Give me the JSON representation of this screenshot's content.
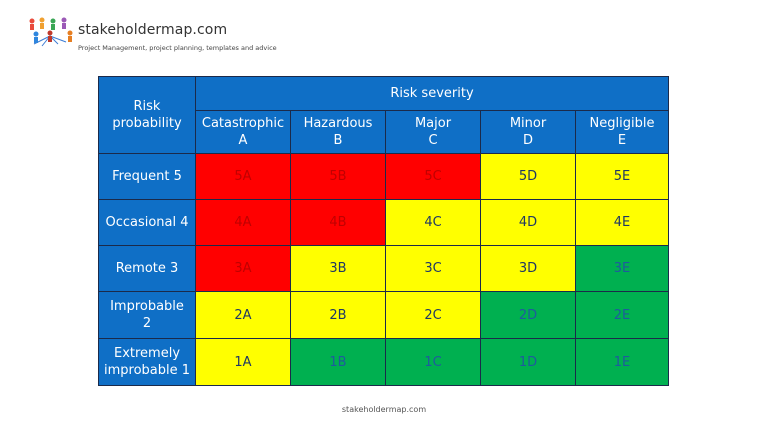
{
  "header": {
    "brand": "stakeholdermap.com",
    "tagline": "Project Management, project planning, templates and advice"
  },
  "table": {
    "corner_label_1": "Risk",
    "corner_label_2": "probability",
    "severity_label": "Risk severity",
    "columns": [
      {
        "name": "Catastrophic",
        "code": "A"
      },
      {
        "name": "Hazardous",
        "code": "B"
      },
      {
        "name": "Major",
        "code": "C"
      },
      {
        "name": "Minor",
        "code": "D"
      },
      {
        "name": "Negligible",
        "code": "E"
      }
    ],
    "rows": [
      {
        "label_1": "Frequent 5",
        "label_2": "",
        "cells": [
          {
            "text": "5A",
            "level": "high"
          },
          {
            "text": "5B",
            "level": "high"
          },
          {
            "text": "5C",
            "level": "high"
          },
          {
            "text": "5D",
            "level": "medium"
          },
          {
            "text": "5E",
            "level": "medium"
          }
        ]
      },
      {
        "label_1": "Occasional 4",
        "label_2": "",
        "cells": [
          {
            "text": "4A",
            "level": "high"
          },
          {
            "text": "4B",
            "level": "high"
          },
          {
            "text": "4C",
            "level": "medium"
          },
          {
            "text": "4D",
            "level": "medium"
          },
          {
            "text": "4E",
            "level": "medium"
          }
        ]
      },
      {
        "label_1": "Remote 3",
        "label_2": "",
        "cells": [
          {
            "text": "3A",
            "level": "high"
          },
          {
            "text": "3B",
            "level": "medium"
          },
          {
            "text": "3C",
            "level": "medium"
          },
          {
            "text": "3D",
            "level": "medium"
          },
          {
            "text": "3E",
            "level": "low"
          }
        ]
      },
      {
        "label_1": "Improbable",
        "label_2": "2",
        "cells": [
          {
            "text": "2A",
            "level": "medium"
          },
          {
            "text": "2B",
            "level": "medium"
          },
          {
            "text": "2C",
            "level": "medium"
          },
          {
            "text": "2D",
            "level": "low"
          },
          {
            "text": "2E",
            "level": "low"
          }
        ]
      },
      {
        "label_1": "Extremely",
        "label_2": "improbable 1",
        "cells": [
          {
            "text": "1A",
            "level": "medium"
          },
          {
            "text": "1B",
            "level": "low"
          },
          {
            "text": "1C",
            "level": "low"
          },
          {
            "text": "1D",
            "level": "low"
          },
          {
            "text": "1E",
            "level": "low"
          }
        ]
      }
    ]
  },
  "colors": {
    "header": "#0f6fc6",
    "high": "#ff0000",
    "medium": "#ffff00",
    "low": "#00b050"
  },
  "footer": {
    "text": "stakeholdermap.com"
  }
}
